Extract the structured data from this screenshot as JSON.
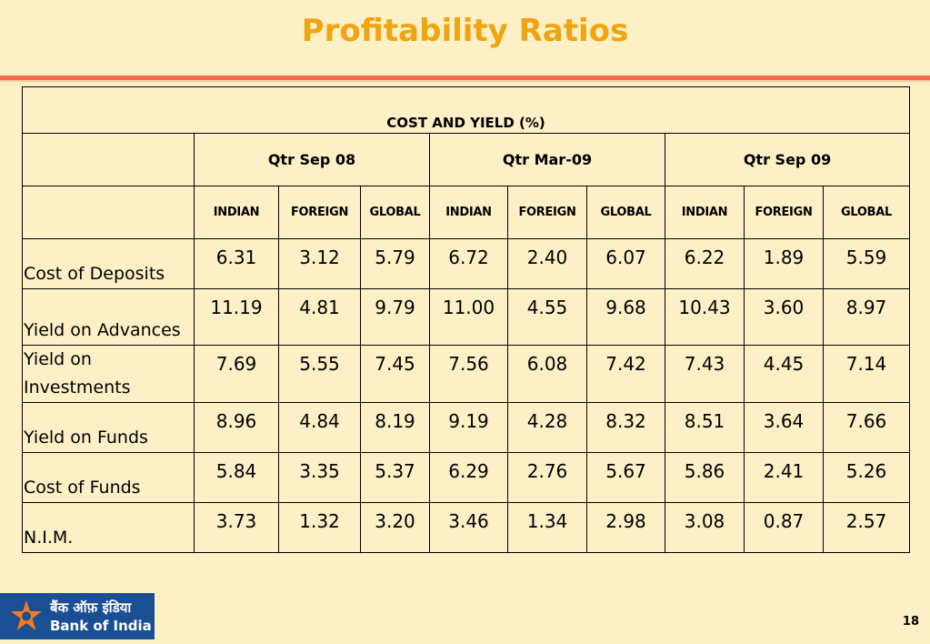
{
  "slide": {
    "title": "Profitability Ratios",
    "page_number": "18"
  },
  "logo": {
    "hindi_name": "बैंक ऑफ़ इंडिया",
    "english_name": "Bank of India",
    "star_color": "#f47a20",
    "background": "#1b4f93"
  },
  "table": {
    "caption": "COST AND YIELD  (%)",
    "periods": [
      "Qtr  Sep 08",
      "Qtr  Mar-09",
      "Qtr  Sep 09"
    ],
    "sub_headers": [
      "INDIAN",
      "FOREIGN",
      "GLOBAL",
      "INDIAN",
      "FOREIGN",
      "GLOBAL",
      "INDIAN",
      "FOREIGN",
      "GLOBAL"
    ],
    "rows": [
      {
        "label": "Cost of Deposits",
        "values": [
          "6.31",
          "3.12",
          "5.79",
          "6.72",
          "2.40",
          "6.07",
          "6.22",
          "1.89",
          "5.59"
        ]
      },
      {
        "label": "Yield on Advances",
        "values": [
          "11.19",
          "4.81",
          "9.79",
          "11.00",
          "4.55",
          "9.68",
          "10.43",
          "3.60",
          "8.97"
        ]
      },
      {
        "label": "Yield on Investments",
        "values": [
          "7.69",
          "5.55",
          "7.45",
          "7.56",
          "6.08",
          "7.42",
          "7.43",
          "4.45",
          "7.14"
        ]
      },
      {
        "label": "Yield on Funds",
        "values": [
          "8.96",
          "4.84",
          "8.19",
          "9.19",
          "4.28",
          "8.32",
          "8.51",
          "3.64",
          "7.66"
        ]
      },
      {
        "label": "Cost of Funds",
        "values": [
          "5.84",
          "3.35",
          "5.37",
          "6.29",
          "2.76",
          "5.67",
          "5.86",
          "2.41",
          "5.26"
        ]
      },
      {
        "label": "N.I.M.",
        "values": [
          "3.73",
          "1.32",
          "3.20",
          "3.46",
          "1.34",
          "2.98",
          "3.08",
          "0.87",
          "2.57"
        ]
      }
    ]
  }
}
